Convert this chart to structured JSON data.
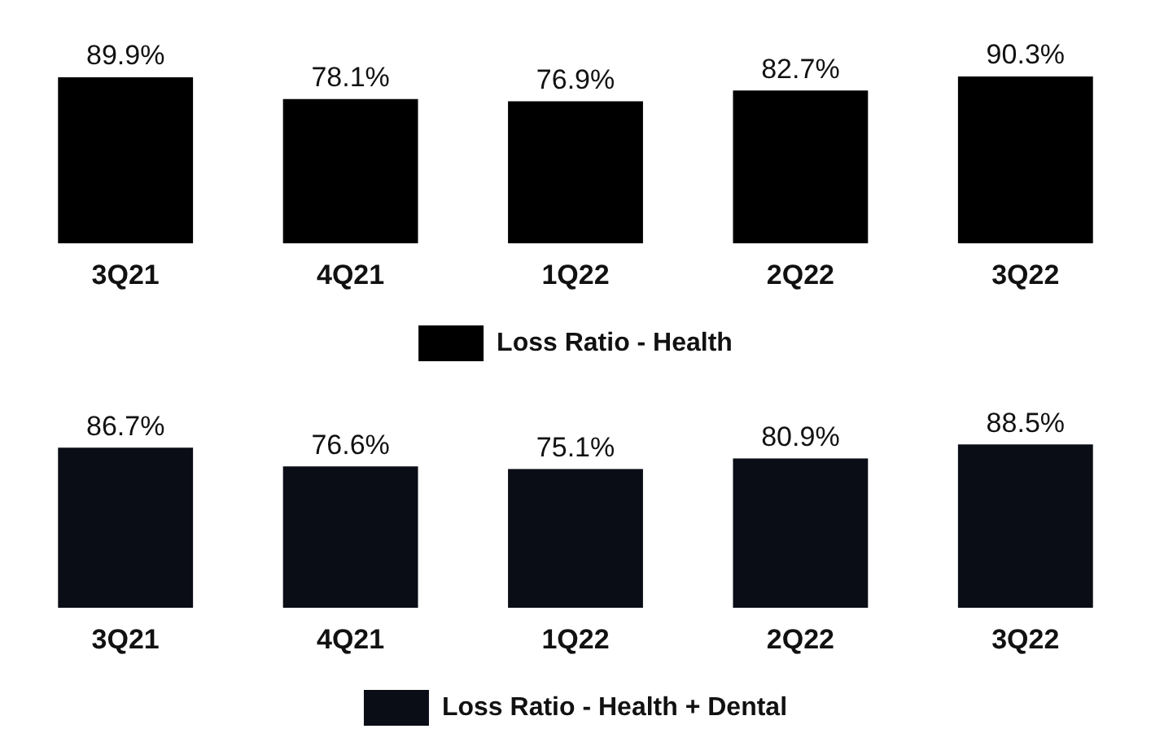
{
  "chart_data": [
    {
      "type": "bar",
      "categories": [
        "3Q21",
        "4Q21",
        "1Q22",
        "2Q22",
        "3Q22"
      ],
      "series": [
        {
          "name": "Loss Ratio - Health",
          "color": "#000000",
          "values": [
            89.9,
            78.1,
            76.9,
            82.7,
            90.3
          ],
          "value_labels": [
            "89.9%",
            "78.1%",
            "76.9%",
            "82.7%",
            "90.3%"
          ]
        }
      ],
      "legend": "bottom",
      "grid": false,
      "tick_labels": "x"
    },
    {
      "type": "bar",
      "categories": [
        "3Q21",
        "4Q21",
        "1Q22",
        "2Q22",
        "3Q22"
      ],
      "series": [
        {
          "name": "Loss Ratio - Health + Dental",
          "color": "#0b0d16",
          "values": [
            86.7,
            76.6,
            75.1,
            80.9,
            88.5
          ],
          "value_labels": [
            "86.7%",
            "76.6%",
            "75.1%",
            "80.9%",
            "88.5%"
          ]
        }
      ],
      "legend": "bottom",
      "grid": false,
      "tick_labels": "x"
    }
  ]
}
